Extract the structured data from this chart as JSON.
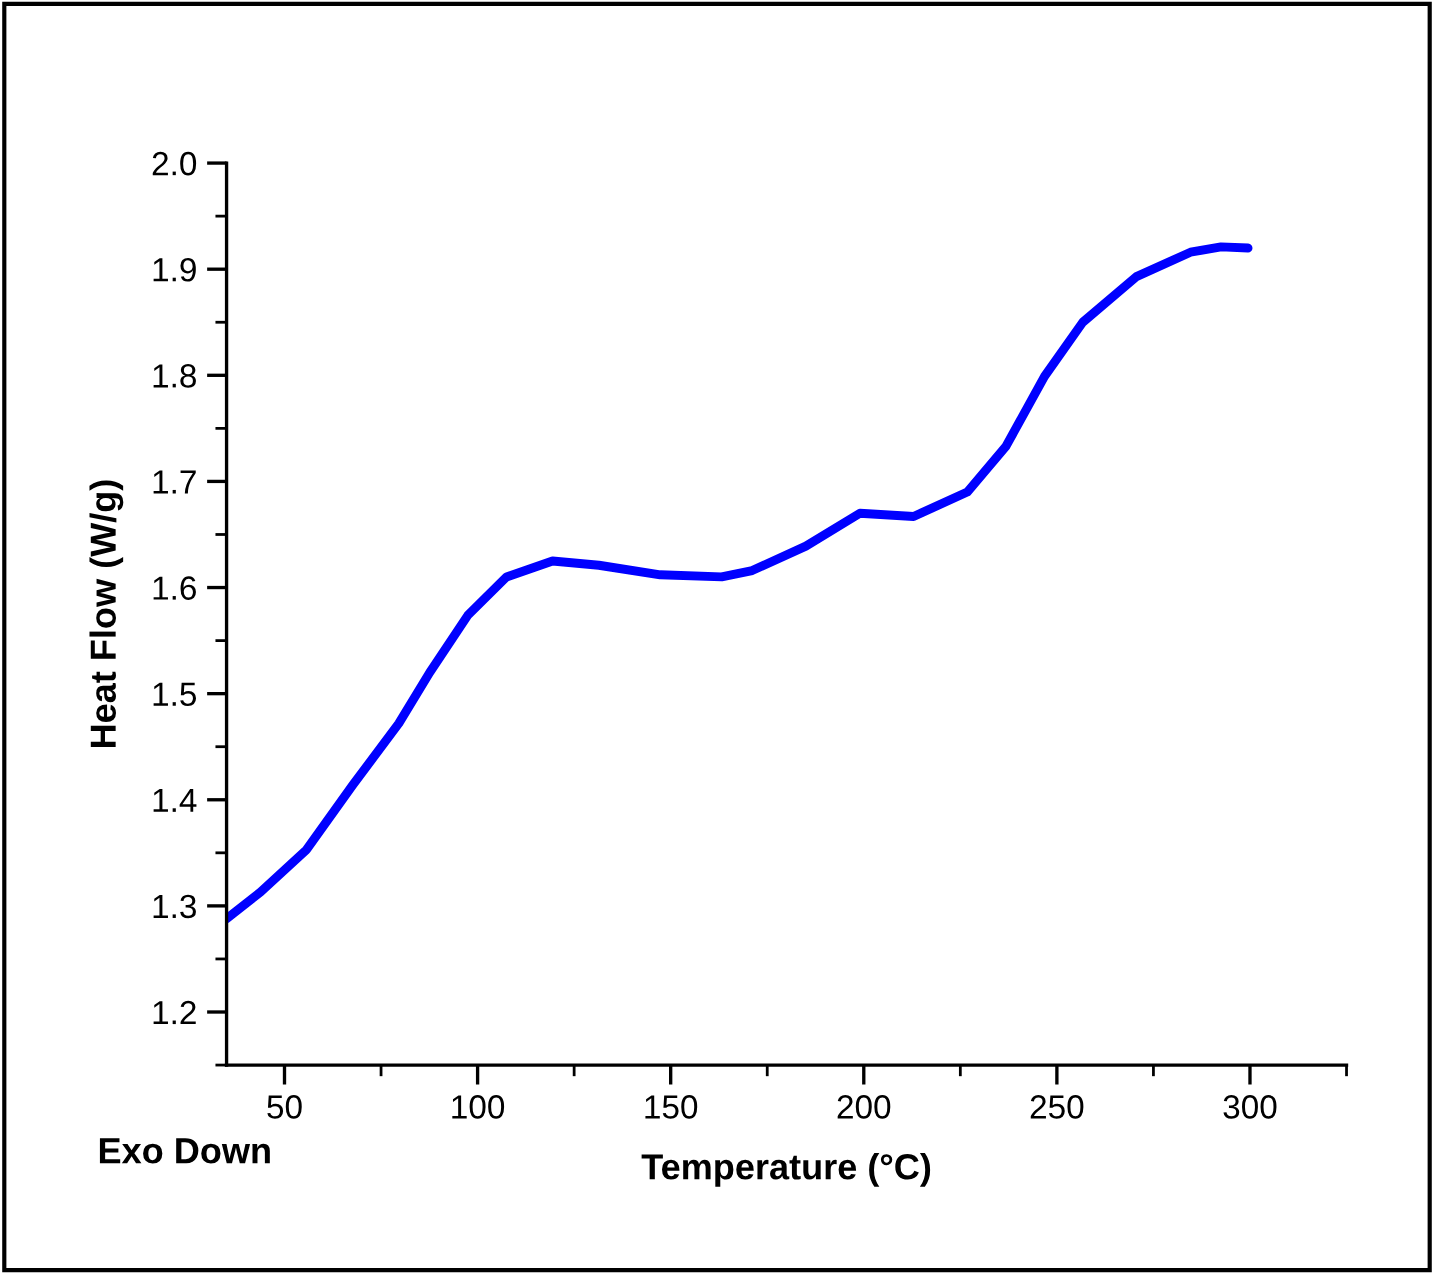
{
  "chart_data": {
    "type": "line",
    "xlabel": "Temperature (°C)",
    "ylabel": "Heat Flow (W/g)",
    "annotations": [
      "Exo Down"
    ],
    "x": [
      35,
      43.8,
      55.7,
      67.7,
      79.6,
      87.6,
      97.5,
      107.5,
      119.4,
      131.4,
      147.3,
      163.2,
      171.1,
      185,
      199,
      212.9,
      226.8,
      236.8,
      246.8,
      256.7,
      270.6,
      284.6,
      292.5,
      299.5
    ],
    "series": [
      {
        "color": "#0000ff",
        "values": [
          1.288,
          1.313,
          1.353,
          1.414,
          1.472,
          1.52,
          1.574,
          1.61,
          1.625,
          1.621,
          1.612,
          1.61,
          1.616,
          1.639,
          1.67,
          1.667,
          1.69,
          1.733,
          1.799,
          1.85,
          1.893,
          1.916,
          1.921,
          1.92
        ]
      }
    ],
    "xlim": [
      35,
      325
    ],
    "xticks": [
      50,
      100,
      150,
      200,
      250,
      300
    ],
    "ylim": [
      1.15,
      2.0
    ],
    "yticks": [
      1.2,
      1.3,
      1.4,
      1.5,
      1.6,
      1.7,
      1.8,
      1.9,
      {
        "value": 2,
        "label": "2.0"
      }
    ],
    "grid": false,
    "legend": false,
    "marker": "none",
    "line_style": "solid"
  }
}
